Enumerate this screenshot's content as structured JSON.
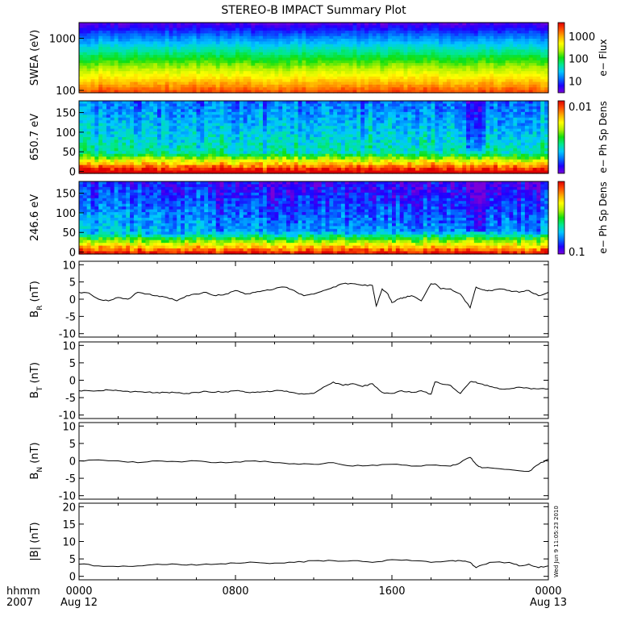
{
  "title": "STEREO-B IMPACT Summary Plot",
  "stamp": "Wed Jun 9 11:05:23 2010",
  "time_axis": {
    "corner_labels": [
      "hhmm",
      "2007"
    ],
    "ticks": [
      {
        "t": 0,
        "label": "0000",
        "sublabel": "Aug 12"
      },
      {
        "t": 8,
        "label": "0800",
        "sublabel": ""
      },
      {
        "t": 16,
        "label": "1600",
        "sublabel": ""
      },
      {
        "t": 24,
        "label": "0000",
        "sublabel": "Aug 13"
      }
    ],
    "range_hours": [
      0,
      24
    ]
  },
  "colorbar_colors": [
    "#7a00d8",
    "#1e00ff",
    "#0070ff",
    "#00c8ff",
    "#00e890",
    "#10e010",
    "#b0f000",
    "#ffff00",
    "#ffb000",
    "#ff5000",
    "#e00000"
  ],
  "chart_data": [
    {
      "type": "heatmap",
      "id": "swea",
      "ylabel": "SWEA (eV)",
      "yscale": "log",
      "ylim": [
        90,
        2000
      ],
      "yticks": [
        {
          "v": 100,
          "label": "100"
        },
        {
          "v": 1000,
          "label": "1000"
        }
      ],
      "colorbar_label": "e− Flux",
      "colorbar_scale": "log",
      "colorbar_range": [
        3,
        4000
      ],
      "colorbar_ticks": [
        {
          "v": 10,
          "label": "10"
        },
        {
          "v": 100,
          "label": "100"
        },
        {
          "v": 1000,
          "label": "1000"
        }
      ]
    },
    {
      "type": "heatmap",
      "id": "pad650",
      "ylabel": "650.7 eV",
      "ylim": [
        -5,
        180
      ],
      "yticks": [
        {
          "v": 0,
          "label": "0"
        },
        {
          "v": 50,
          "label": "50"
        },
        {
          "v": 100,
          "label": "100"
        },
        {
          "v": 150,
          "label": "150"
        }
      ],
      "colorbar_label": "e− Ph Sp Dens",
      "colorbar_scale": "log",
      "colorbar_ticks": [
        {
          "label": "0.01",
          "position": "top"
        }
      ]
    },
    {
      "type": "heatmap",
      "id": "pad246",
      "ylabel": "246.6 eV",
      "ylim": [
        -5,
        180
      ],
      "yticks": [
        {
          "v": 0,
          "label": "0"
        },
        {
          "v": 50,
          "label": "50"
        },
        {
          "v": 100,
          "label": "100"
        },
        {
          "v": 150,
          "label": "150"
        }
      ],
      "colorbar_label": "e− Ph Sp Dens",
      "colorbar_scale": "log",
      "colorbar_ticks": [
        {
          "label": "0.1",
          "position": "bottom"
        }
      ]
    },
    {
      "type": "line",
      "id": "br",
      "ylabel_main": "B",
      "ylabel_sub": "R",
      "ylabel_unit": " (nT)",
      "ylim": [
        -11,
        11
      ],
      "yticks": [
        {
          "v": -10,
          "label": "-10"
        },
        {
          "v": -5,
          "label": "-5"
        },
        {
          "v": 0,
          "label": "0"
        },
        {
          "v": 5,
          "label": "5"
        },
        {
          "v": 10,
          "label": "10"
        }
      ],
      "x": [
        0,
        0.5,
        1,
        1.5,
        2,
        2.5,
        3,
        3.5,
        4,
        4.5,
        5,
        5.5,
        6,
        6.5,
        7,
        7.5,
        8,
        8.5,
        9,
        9.5,
        10,
        10.5,
        11,
        11.5,
        12,
        12.5,
        13,
        13.5,
        14,
        14.5,
        15,
        15.2,
        15.5,
        15.8,
        16,
        16.3,
        16.6,
        17,
        17.5,
        18,
        18.2,
        18.5,
        19,
        19.5,
        20,
        20.3,
        20.5,
        20.8,
        21,
        21.5,
        22,
        22.5,
        23,
        23.5,
        24
      ],
      "y": [
        2,
        1.8,
        0,
        -0.5,
        0.5,
        0,
        2,
        1.5,
        1,
        0.5,
        -0.5,
        1,
        1.5,
        2,
        1,
        1.5,
        2.5,
        1.5,
        2,
        2.5,
        3,
        3.5,
        2.5,
        1,
        1.5,
        2.5,
        3.5,
        4.5,
        4.5,
        4,
        4,
        -2,
        3,
        1.5,
        -1,
        0,
        0.5,
        1,
        -0.5,
        4.5,
        4.5,
        3,
        3,
        1.5,
        -2.5,
        3.5,
        3,
        2.5,
        2.5,
        3,
        2.5,
        2,
        2.5,
        1,
        2
      ]
    },
    {
      "type": "line",
      "id": "bt",
      "ylabel_main": "B",
      "ylabel_sub": "T",
      "ylabel_unit": " (nT)",
      "ylim": [
        -11,
        11
      ],
      "yticks": [
        {
          "v": -10,
          "label": "-10"
        },
        {
          "v": -5,
          "label": "-5"
        },
        {
          "v": 0,
          "label": "0"
        },
        {
          "v": 5,
          "label": "5"
        },
        {
          "v": 10,
          "label": "10"
        }
      ],
      "x": [
        0,
        0.5,
        1,
        1.5,
        2,
        2.5,
        3,
        3.5,
        4,
        4.5,
        5,
        5.5,
        6,
        6.5,
        7,
        7.5,
        8,
        8.5,
        9,
        9.5,
        10,
        10.5,
        11,
        11.5,
        12,
        12.5,
        13,
        13.5,
        14,
        14.5,
        15,
        15.5,
        16,
        16.5,
        17,
        17.5,
        18,
        18.2,
        18.5,
        19,
        19.5,
        20,
        20.3,
        20.5,
        21,
        21.5,
        22,
        22.5,
        23,
        23.5,
        24
      ],
      "y": [
        -3,
        -3,
        -3,
        -2.8,
        -3,
        -3.2,
        -3.3,
        -3.4,
        -3.5,
        -3.5,
        -3.6,
        -3.8,
        -3.5,
        -3.2,
        -3.4,
        -3.3,
        -3,
        -3.4,
        -3.5,
        -3.3,
        -3,
        -3.2,
        -3.6,
        -4,
        -3.8,
        -2,
        -0.5,
        -1.5,
        -1,
        -1.8,
        -1,
        -3.5,
        -3.8,
        -3,
        -3.5,
        -3,
        -4,
        -0.5,
        -1,
        -1.5,
        -3.8,
        -0.5,
        -0.5,
        -1,
        -1.8,
        -2.5,
        -2.5,
        -2,
        -2.3,
        -2.5,
        -2.5
      ]
    },
    {
      "type": "line",
      "id": "bn",
      "ylabel_main": "B",
      "ylabel_sub": "N",
      "ylabel_unit": " (nT)",
      "ylim": [
        -11,
        11
      ],
      "yticks": [
        {
          "v": -10,
          "label": "-10"
        },
        {
          "v": -5,
          "label": "-5"
        },
        {
          "v": 0,
          "label": "0"
        },
        {
          "v": 5,
          "label": "5"
        },
        {
          "v": 10,
          "label": "10"
        }
      ],
      "x": [
        0,
        1,
        2,
        3,
        4,
        5,
        6,
        7,
        8,
        9,
        10,
        11,
        12,
        13,
        14,
        15,
        16,
        17,
        18,
        19,
        19.5,
        20,
        20.3,
        20.6,
        21,
        22,
        23,
        23.5,
        24
      ],
      "y": [
        0,
        0.3,
        0,
        -0.5,
        0,
        -0.2,
        0,
        -0.5,
        -0.3,
        0,
        -0.5,
        -0.8,
        -1,
        -0.5,
        -1.5,
        -1.2,
        -1,
        -1.5,
        -1.2,
        -1.5,
        -0.5,
        1,
        -1,
        -2,
        -2,
        -2.5,
        -3,
        -1,
        0.5
      ]
    },
    {
      "type": "line",
      "id": "bmag",
      "ylabel_main": "|B| (nT)",
      "ylabel_sub": "",
      "ylabel_unit": "",
      "ylim": [
        -1,
        21
      ],
      "yticks": [
        {
          "v": 0,
          "label": "0"
        },
        {
          "v": 5,
          "label": "5"
        },
        {
          "v": 10,
          "label": "10"
        },
        {
          "v": 15,
          "label": "15"
        },
        {
          "v": 20,
          "label": "20"
        }
      ],
      "x": [
        0,
        1,
        2,
        3,
        4,
        5,
        6,
        7,
        8,
        9,
        10,
        11,
        12,
        13,
        14,
        15,
        16,
        17,
        18,
        19,
        19.5,
        20,
        20.3,
        21,
        22,
        22.5,
        23,
        23.5,
        24
      ],
      "y": [
        3.5,
        3,
        2.8,
        3,
        3.5,
        3.5,
        3.2,
        3.5,
        3.8,
        4,
        3.8,
        4,
        4.5,
        4.5,
        4.5,
        4,
        4.8,
        4.5,
        4,
        4.5,
        4.5,
        4,
        2.5,
        4,
        4,
        3,
        3.5,
        2.5,
        3
      ]
    }
  ]
}
